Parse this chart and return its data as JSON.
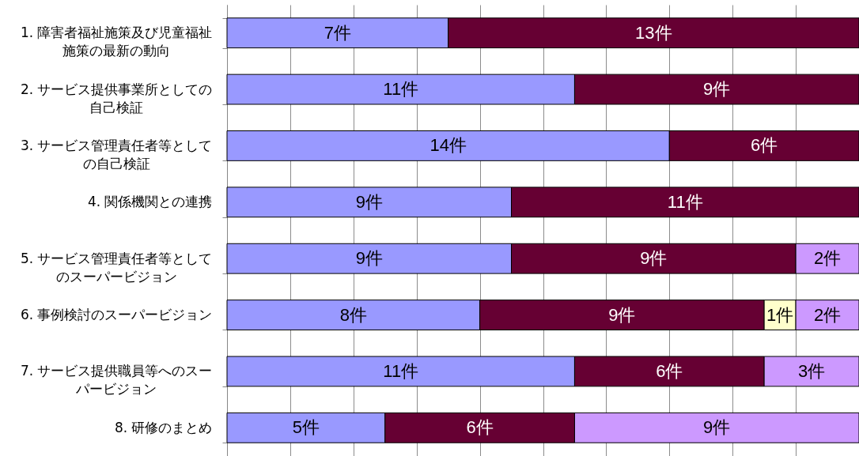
{
  "chart_data": {
    "type": "bar",
    "orientation": "horizontal",
    "stacked": true,
    "categories": [
      "1. 障害者福祉施策及び児童福祉施策の最新の動向",
      "2. サービス提供事業所としての自己検証",
      "3. サービス管理責任者等としての自己検証",
      "4. 関係機関との連携",
      "5. サービス管理責任者等としてのスーパービジョン",
      "6. 事例検討のスーパービジョン",
      "7. サービス提供職員等へのスーパービジョン",
      "8. 研修のまとめ"
    ],
    "series": [
      {
        "color": "#9999ff",
        "values": [
          7,
          11,
          14,
          9,
          9,
          8,
          11,
          5
        ],
        "value_labels": [
          "7件",
          "11件",
          "14件",
          "9件",
          "9件",
          "8件",
          "11件",
          "5件"
        ]
      },
      {
        "color": "#660033",
        "values": [
          13,
          9,
          6,
          11,
          9,
          9,
          6,
          6
        ],
        "value_labels": [
          "13件",
          "9件",
          "6件",
          "11件",
          "9件",
          "9件",
          "6件",
          "6件"
        ]
      },
      {
        "color": "#ffffcc",
        "values": [
          null,
          null,
          null,
          null,
          null,
          1,
          null,
          null
        ],
        "value_labels": [
          null,
          null,
          null,
          null,
          null,
          "1件",
          null,
          null
        ]
      },
      {
        "color": "#cc99ff",
        "values": [
          null,
          null,
          null,
          null,
          2,
          2,
          3,
          9
        ],
        "value_labels": [
          null,
          null,
          null,
          null,
          "2件",
          "2件",
          "3件",
          "9件"
        ]
      }
    ],
    "xlim": [
      0,
      20
    ],
    "xticks": [
      {
        "value": 0,
        "label": null
      },
      {
        "value": 2,
        "label": null
      },
      {
        "value": 4,
        "label": null
      },
      {
        "value": 6,
        "label": null
      },
      {
        "value": 8,
        "label": null
      },
      {
        "value": 10,
        "label": null
      },
      {
        "value": 12,
        "label": null
      },
      {
        "value": 14,
        "label": null
      },
      {
        "value": 16,
        "label": null
      },
      {
        "value": 18,
        "label": null
      },
      {
        "value": 20,
        "label": null
      }
    ],
    "grid": "x",
    "tick_labels": "y"
  }
}
